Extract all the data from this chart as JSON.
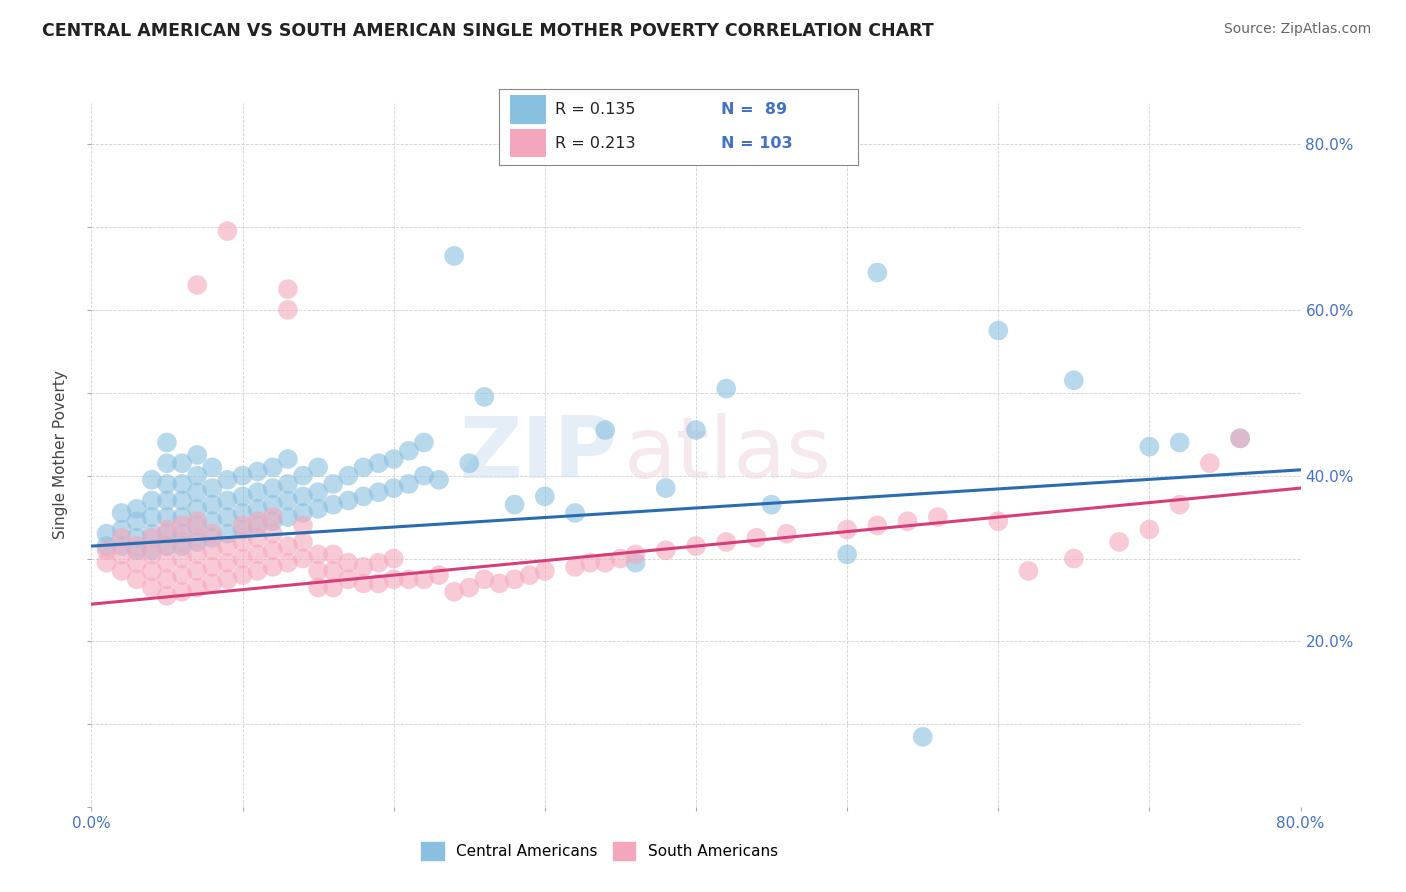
{
  "title": "CENTRAL AMERICAN VS SOUTH AMERICAN SINGLE MOTHER POVERTY CORRELATION CHART",
  "source": "Source: ZipAtlas.com",
  "ylabel": "Single Mother Poverty",
  "xlim": [
    0.0,
    0.8
  ],
  "ylim": [
    0.0,
    0.85
  ],
  "ytick_positions": [
    0.2,
    0.4,
    0.6,
    0.8
  ],
  "ytick_labels": [
    "20.0%",
    "40.0%",
    "60.0%",
    "80.0%"
  ],
  "blue_color": "#89bfdf",
  "pink_color": "#f4a7bc",
  "blue_line_color": "#2b6cb0",
  "pink_line_color": "#d63e7a",
  "legend_R_blue": "R = 0.135",
  "legend_N_blue": "N =  89",
  "legend_R_pink": "R = 0.213",
  "legend_N_pink": "N = 103",
  "legend_label_blue": "Central Americans",
  "legend_label_pink": "South Americans",
  "blue_slope": 0.115,
  "blue_intercept": 0.315,
  "pink_slope": 0.175,
  "pink_intercept": 0.245,
  "watermark_zip": "ZIP",
  "watermark_atlas": "atlas",
  "tick_label_color": "#4472c4",
  "blue_scatter": [
    [
      0.01,
      0.315
    ],
    [
      0.01,
      0.33
    ],
    [
      0.02,
      0.315
    ],
    [
      0.02,
      0.335
    ],
    [
      0.02,
      0.355
    ],
    [
      0.03,
      0.31
    ],
    [
      0.03,
      0.325
    ],
    [
      0.03,
      0.345
    ],
    [
      0.03,
      0.36
    ],
    [
      0.04,
      0.31
    ],
    [
      0.04,
      0.33
    ],
    [
      0.04,
      0.35
    ],
    [
      0.04,
      0.37
    ],
    [
      0.04,
      0.395
    ],
    [
      0.05,
      0.315
    ],
    [
      0.05,
      0.33
    ],
    [
      0.05,
      0.35
    ],
    [
      0.05,
      0.37
    ],
    [
      0.05,
      0.39
    ],
    [
      0.05,
      0.415
    ],
    [
      0.05,
      0.44
    ],
    [
      0.06,
      0.315
    ],
    [
      0.06,
      0.33
    ],
    [
      0.06,
      0.35
    ],
    [
      0.06,
      0.37
    ],
    [
      0.06,
      0.39
    ],
    [
      0.06,
      0.415
    ],
    [
      0.07,
      0.32
    ],
    [
      0.07,
      0.34
    ],
    [
      0.07,
      0.36
    ],
    [
      0.07,
      0.38
    ],
    [
      0.07,
      0.4
    ],
    [
      0.07,
      0.425
    ],
    [
      0.08,
      0.325
    ],
    [
      0.08,
      0.345
    ],
    [
      0.08,
      0.365
    ],
    [
      0.08,
      0.385
    ],
    [
      0.08,
      0.41
    ],
    [
      0.09,
      0.33
    ],
    [
      0.09,
      0.35
    ],
    [
      0.09,
      0.37
    ],
    [
      0.09,
      0.395
    ],
    [
      0.1,
      0.335
    ],
    [
      0.1,
      0.355
    ],
    [
      0.1,
      0.375
    ],
    [
      0.1,
      0.4
    ],
    [
      0.11,
      0.34
    ],
    [
      0.11,
      0.36
    ],
    [
      0.11,
      0.38
    ],
    [
      0.11,
      0.405
    ],
    [
      0.12,
      0.345
    ],
    [
      0.12,
      0.365
    ],
    [
      0.12,
      0.385
    ],
    [
      0.12,
      0.41
    ],
    [
      0.13,
      0.35
    ],
    [
      0.13,
      0.37
    ],
    [
      0.13,
      0.39
    ],
    [
      0.13,
      0.42
    ],
    [
      0.14,
      0.355
    ],
    [
      0.14,
      0.375
    ],
    [
      0.14,
      0.4
    ],
    [
      0.15,
      0.36
    ],
    [
      0.15,
      0.38
    ],
    [
      0.15,
      0.41
    ],
    [
      0.16,
      0.365
    ],
    [
      0.16,
      0.39
    ],
    [
      0.17,
      0.37
    ],
    [
      0.17,
      0.4
    ],
    [
      0.18,
      0.375
    ],
    [
      0.18,
      0.41
    ],
    [
      0.19,
      0.38
    ],
    [
      0.19,
      0.415
    ],
    [
      0.2,
      0.385
    ],
    [
      0.2,
      0.42
    ],
    [
      0.21,
      0.39
    ],
    [
      0.21,
      0.43
    ],
    [
      0.22,
      0.4
    ],
    [
      0.22,
      0.44
    ],
    [
      0.23,
      0.395
    ],
    [
      0.24,
      0.665
    ],
    [
      0.25,
      0.415
    ],
    [
      0.26,
      0.495
    ],
    [
      0.28,
      0.365
    ],
    [
      0.3,
      0.375
    ],
    [
      0.32,
      0.355
    ],
    [
      0.34,
      0.455
    ],
    [
      0.36,
      0.295
    ],
    [
      0.38,
      0.385
    ],
    [
      0.4,
      0.455
    ],
    [
      0.42,
      0.505
    ],
    [
      0.45,
      0.365
    ],
    [
      0.5,
      0.305
    ],
    [
      0.52,
      0.645
    ],
    [
      0.55,
      0.085
    ],
    [
      0.6,
      0.575
    ],
    [
      0.65,
      0.515
    ],
    [
      0.7,
      0.435
    ],
    [
      0.72,
      0.44
    ],
    [
      0.76,
      0.445
    ]
  ],
  "pink_scatter": [
    [
      0.01,
      0.295
    ],
    [
      0.01,
      0.31
    ],
    [
      0.02,
      0.285
    ],
    [
      0.02,
      0.305
    ],
    [
      0.02,
      0.325
    ],
    [
      0.03,
      0.275
    ],
    [
      0.03,
      0.295
    ],
    [
      0.03,
      0.315
    ],
    [
      0.04,
      0.265
    ],
    [
      0.04,
      0.285
    ],
    [
      0.04,
      0.305
    ],
    [
      0.04,
      0.325
    ],
    [
      0.05,
      0.255
    ],
    [
      0.05,
      0.275
    ],
    [
      0.05,
      0.295
    ],
    [
      0.05,
      0.315
    ],
    [
      0.05,
      0.335
    ],
    [
      0.06,
      0.26
    ],
    [
      0.06,
      0.28
    ],
    [
      0.06,
      0.3
    ],
    [
      0.06,
      0.32
    ],
    [
      0.06,
      0.34
    ],
    [
      0.07,
      0.265
    ],
    [
      0.07,
      0.285
    ],
    [
      0.07,
      0.305
    ],
    [
      0.07,
      0.325
    ],
    [
      0.07,
      0.345
    ],
    [
      0.07,
      0.63
    ],
    [
      0.08,
      0.27
    ],
    [
      0.08,
      0.29
    ],
    [
      0.08,
      0.31
    ],
    [
      0.08,
      0.33
    ],
    [
      0.09,
      0.275
    ],
    [
      0.09,
      0.295
    ],
    [
      0.09,
      0.315
    ],
    [
      0.09,
      0.695
    ],
    [
      0.1,
      0.28
    ],
    [
      0.1,
      0.3
    ],
    [
      0.1,
      0.32
    ],
    [
      0.1,
      0.34
    ],
    [
      0.11,
      0.285
    ],
    [
      0.11,
      0.305
    ],
    [
      0.11,
      0.325
    ],
    [
      0.11,
      0.345
    ],
    [
      0.12,
      0.29
    ],
    [
      0.12,
      0.31
    ],
    [
      0.12,
      0.33
    ],
    [
      0.12,
      0.35
    ],
    [
      0.13,
      0.295
    ],
    [
      0.13,
      0.315
    ],
    [
      0.13,
      0.6
    ],
    [
      0.13,
      0.625
    ],
    [
      0.14,
      0.3
    ],
    [
      0.14,
      0.32
    ],
    [
      0.14,
      0.34
    ],
    [
      0.15,
      0.265
    ],
    [
      0.15,
      0.285
    ],
    [
      0.15,
      0.305
    ],
    [
      0.16,
      0.265
    ],
    [
      0.16,
      0.285
    ],
    [
      0.16,
      0.305
    ],
    [
      0.17,
      0.275
    ],
    [
      0.17,
      0.295
    ],
    [
      0.18,
      0.27
    ],
    [
      0.18,
      0.29
    ],
    [
      0.19,
      0.27
    ],
    [
      0.19,
      0.295
    ],
    [
      0.2,
      0.275
    ],
    [
      0.2,
      0.3
    ],
    [
      0.21,
      0.275
    ],
    [
      0.22,
      0.275
    ],
    [
      0.23,
      0.28
    ],
    [
      0.24,
      0.26
    ],
    [
      0.25,
      0.265
    ],
    [
      0.26,
      0.275
    ],
    [
      0.27,
      0.27
    ],
    [
      0.28,
      0.275
    ],
    [
      0.29,
      0.28
    ],
    [
      0.3,
      0.285
    ],
    [
      0.32,
      0.29
    ],
    [
      0.33,
      0.295
    ],
    [
      0.34,
      0.295
    ],
    [
      0.35,
      0.3
    ],
    [
      0.36,
      0.305
    ],
    [
      0.38,
      0.31
    ],
    [
      0.4,
      0.315
    ],
    [
      0.42,
      0.32
    ],
    [
      0.44,
      0.325
    ],
    [
      0.46,
      0.33
    ],
    [
      0.5,
      0.335
    ],
    [
      0.52,
      0.34
    ],
    [
      0.54,
      0.345
    ],
    [
      0.56,
      0.35
    ],
    [
      0.6,
      0.345
    ],
    [
      0.62,
      0.285
    ],
    [
      0.65,
      0.3
    ],
    [
      0.68,
      0.32
    ],
    [
      0.7,
      0.335
    ],
    [
      0.72,
      0.365
    ],
    [
      0.74,
      0.415
    ],
    [
      0.76,
      0.445
    ]
  ]
}
